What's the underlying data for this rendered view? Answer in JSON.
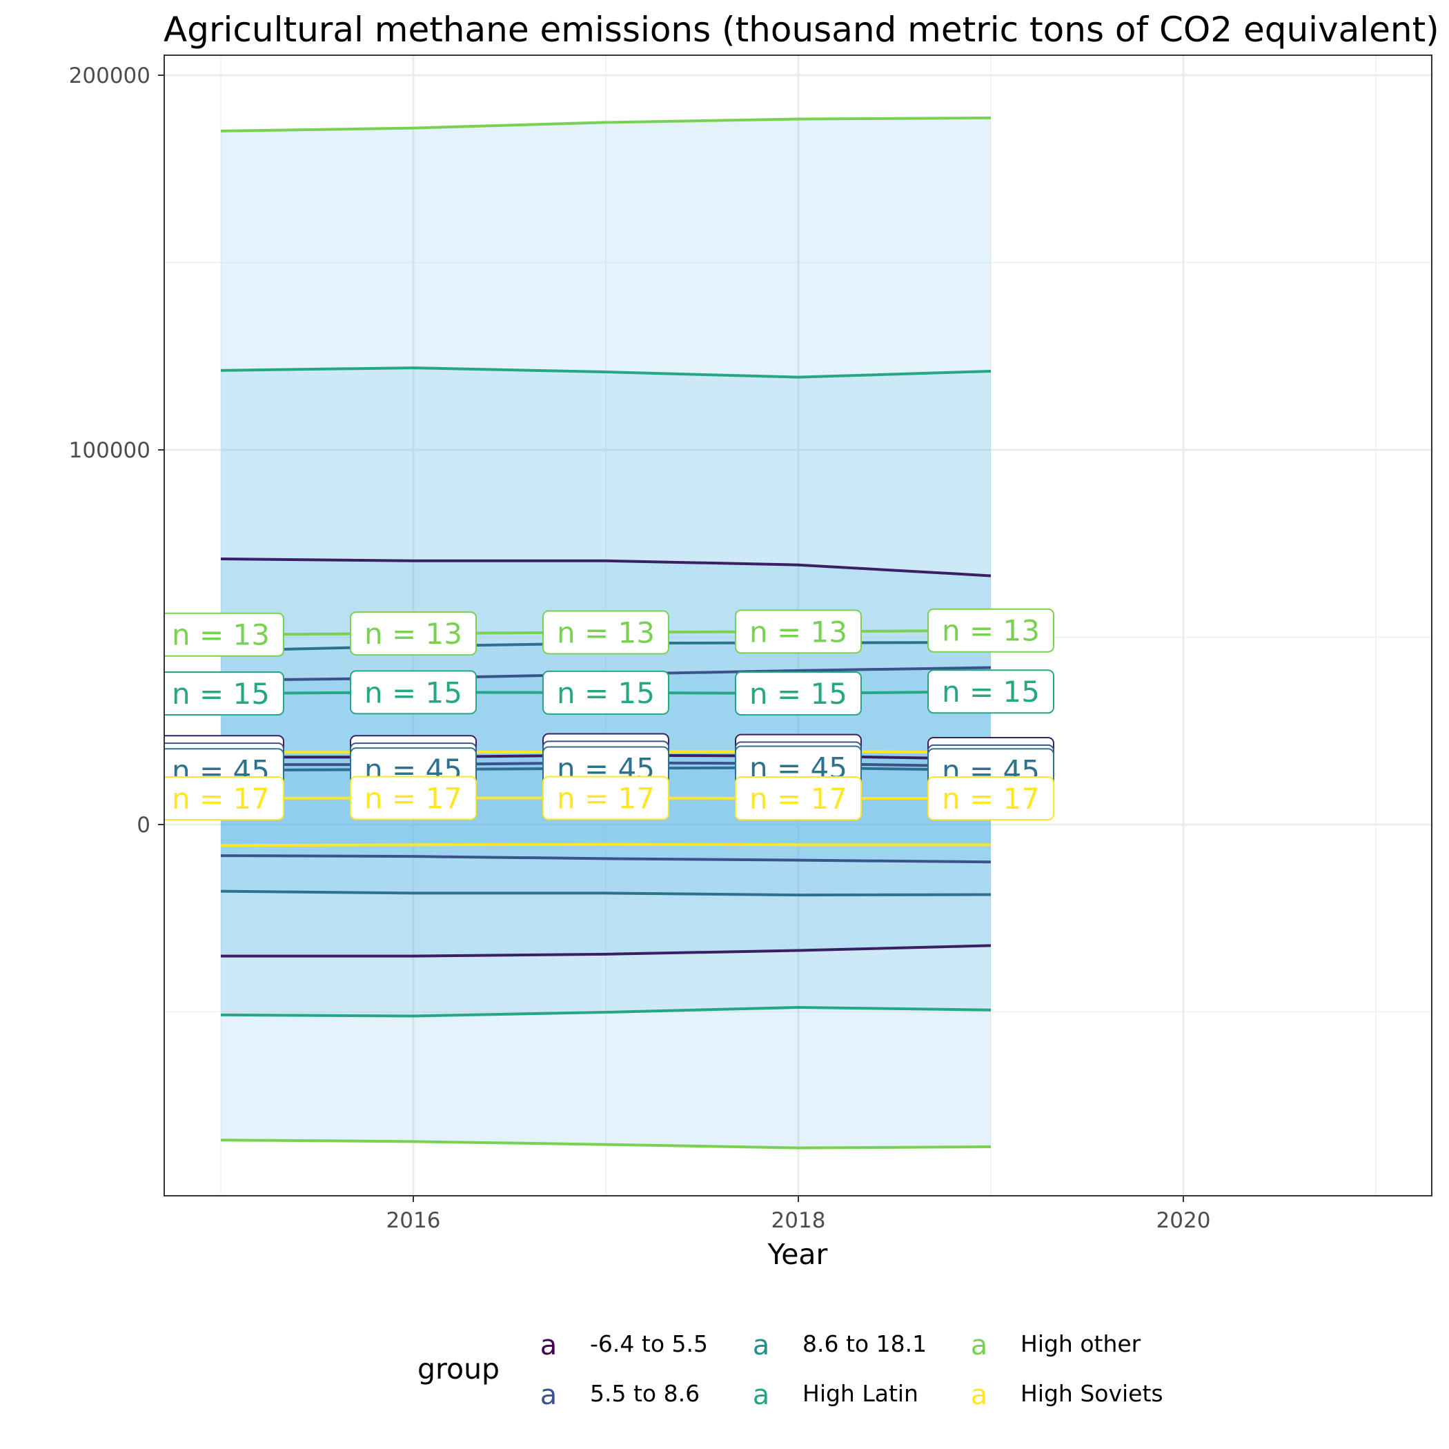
{
  "chart_data": {
    "type": "line",
    "title": "Agricultural methane emissions (thousand metric tons of CO2 equivalent)",
    "xlabel": "Year",
    "ylabel": "",
    "xlim": [
      2014.7,
      2021.3
    ],
    "ylim": [
      -100000,
      200000
    ],
    "x_ticks": [
      2016,
      2018,
      2020
    ],
    "y_ticks": [
      0,
      100000,
      200000
    ],
    "grid": true,
    "x": [
      2015,
      2016,
      2017,
      2018,
      2019
    ],
    "legend": {
      "title": "group",
      "placement": "bottom",
      "key_glyph": "a"
    },
    "series": [
      {
        "name": "-6.4 to 5.5",
        "color": "#440154",
        "line_color": "#3b1f63",
        "mean": [
          18000,
          18000,
          18500,
          18300,
          17500
        ],
        "upper": [
          70900,
          70400,
          70400,
          69300,
          66400
        ],
        "lower": [
          -35100,
          -35100,
          -34600,
          -33600,
          -32300
        ],
        "n": [
          45,
          45,
          45,
          45,
          45
        ]
      },
      {
        "name": "5.5 to 8.6",
        "color": "#3b528b",
        "line_color": "#3b528b",
        "mean": [
          16000,
          16000,
          16500,
          16300,
          15500
        ],
        "upper": [
          38500,
          39100,
          40100,
          41100,
          41900
        ],
        "lower": [
          -8300,
          -8500,
          -9100,
          -9500,
          -10000
        ],
        "n": [
          45,
          45,
          45,
          45,
          45
        ]
      },
      {
        "name": "8.6 to 18.1",
        "color": "#21908c",
        "line_color": "#2c718e",
        "mean": [
          14500,
          14700,
          15000,
          15200,
          14500
        ],
        "upper": [
          46400,
          47600,
          48400,
          48500,
          48600
        ],
        "lower": [
          -17800,
          -18300,
          -18300,
          -18800,
          -18700
        ],
        "n": [
          45,
          45,
          45,
          45,
          45
        ]
      },
      {
        "name": "High Latin",
        "color": "#21a585",
        "line_color": "#26a784",
        "mean": [
          35000,
          35300,
          35200,
          35000,
          35500
        ],
        "upper": [
          121200,
          121900,
          120800,
          119400,
          121000
        ],
        "lower": [
          -50800,
          -51100,
          -50100,
          -48800,
          -49500
        ],
        "n": [
          15,
          15,
          15,
          15,
          15
        ]
      },
      {
        "name": "High other",
        "color": "#7ad151",
        "line_color": "#79d151",
        "mean": [
          50700,
          51000,
          51300,
          51500,
          51800
        ],
        "upper": [
          185100,
          185900,
          187400,
          188300,
          188600
        ],
        "lower": [
          -84200,
          -84600,
          -85400,
          -86300,
          -86000
        ],
        "n": [
          13,
          13,
          13,
          13,
          13
        ]
      },
      {
        "name": "High Soviets",
        "color": "#fde725",
        "line_color": "#fde725",
        "mean": [
          7000,
          7100,
          7100,
          7000,
          7000
        ],
        "upper": [
          19300,
          19300,
          19400,
          19500,
          19300
        ],
        "lower": [
          -5600,
          -5400,
          -5300,
          -5400,
          -5400
        ],
        "n": [
          17,
          17,
          17,
          17,
          17
        ]
      }
    ],
    "band_fill_opacity": 0.16
  }
}
